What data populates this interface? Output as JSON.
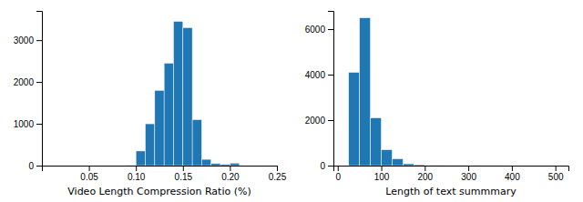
{
  "chart_data": [
    {
      "type": "histogram",
      "xlabel": "Video Length Compression Ratio (%)",
      "bins": [
        0.0,
        0.01,
        0.02,
        0.03,
        0.04,
        0.05,
        0.06,
        0.07,
        0.08,
        0.09,
        0.1,
        0.11,
        0.12,
        0.13,
        0.14,
        0.15,
        0.16,
        0.17,
        0.18,
        0.19,
        0.2,
        0.21
      ],
      "values": [
        0,
        0,
        0,
        0,
        0,
        0,
        0,
        0,
        0,
        5,
        350,
        1000,
        1800,
        2450,
        3450,
        3300,
        1100,
        150,
        50,
        30,
        60
      ],
      "color": "#1f77b4",
      "xlim": [
        0.0,
        0.25
      ],
      "ylim": [
        0,
        3700
      ],
      "xticks": [
        0.05,
        {
          "value": 0.1,
          "label": "0.10"
        },
        0.15,
        {
          "value": 0.2,
          "label": "0.20"
        },
        0.25
      ],
      "yticks": [
        0,
        1000,
        2000,
        3000
      ]
    },
    {
      "type": "histogram",
      "xlabel": "Length of text summmary",
      "bins": [
        0,
        25,
        50,
        75,
        100,
        125,
        150,
        175,
        200,
        225,
        250,
        275,
        300,
        325,
        350,
        375,
        400,
        425,
        450,
        475,
        500,
        525
      ],
      "values": [
        0,
        4100,
        6500,
        2100,
        700,
        300,
        80,
        40,
        20,
        10,
        5,
        5,
        3,
        2,
        2,
        1,
        1,
        1,
        1,
        1,
        0
      ],
      "color": "#1f77b4",
      "xlim": [
        -10,
        530
      ],
      "ylim": [
        0,
        6800
      ],
      "xticks": [
        0,
        100,
        200,
        300,
        400,
        500
      ],
      "yticks": [
        0,
        2000,
        4000,
        6000
      ]
    }
  ]
}
